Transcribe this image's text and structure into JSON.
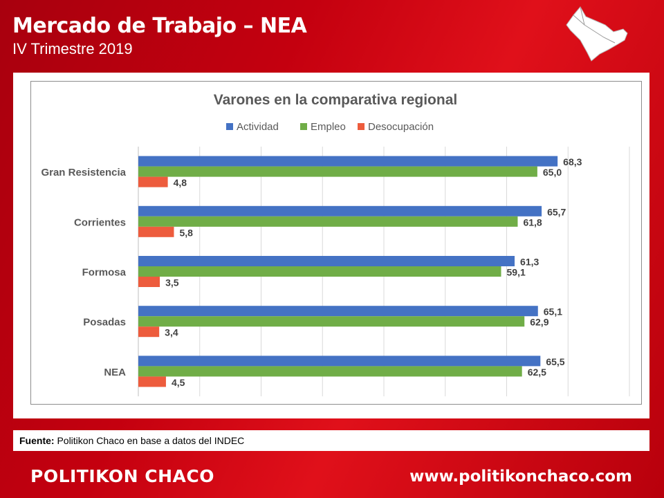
{
  "header": {
    "title": "Mercado de Trabajo – NEA",
    "subtitle": "IV Trimestre 2019"
  },
  "source": {
    "label": "Fuente:",
    "text": " Politikon Chaco en base a datos del INDEC"
  },
  "footer": {
    "brand": "POLITIKON CHACO",
    "website": "www.politikonchaco.com"
  },
  "icons": {
    "map": "nea-region-map-icon"
  },
  "colors": {
    "background": "#c4000f",
    "actividad": "#4472c4",
    "empleo": "#70ad47",
    "desocupacion": "#ed5c3d"
  },
  "chart_data": {
    "type": "bar",
    "orientation": "horizontal",
    "title": "Varones en la comparativa regional",
    "categories": [
      "Gran Resistencia",
      "Corrientes",
      "Formosa",
      "Posadas",
      "NEA"
    ],
    "series": [
      {
        "name": "Actividad",
        "color": "#4472c4",
        "values": [
          68.3,
          65.7,
          61.3,
          65.1,
          65.5
        ],
        "labels": [
          "68,3",
          "65,7",
          "61,3",
          "65,1",
          "65,5"
        ]
      },
      {
        "name": "Empleo",
        "color": "#70ad47",
        "values": [
          65.0,
          61.8,
          59.1,
          62.9,
          62.5
        ],
        "labels": [
          "65,0",
          "61,8",
          "59,1",
          "62,9",
          "62,5"
        ]
      },
      {
        "name": "Desocupación",
        "color": "#ed5c3d",
        "values": [
          4.8,
          5.8,
          3.5,
          3.4,
          4.5
        ],
        "labels": [
          "4,8",
          "5,8",
          "3,5",
          "3,4",
          "4,5"
        ]
      }
    ],
    "xlim": [
      0,
      80
    ],
    "grid": true,
    "legend": "top"
  }
}
